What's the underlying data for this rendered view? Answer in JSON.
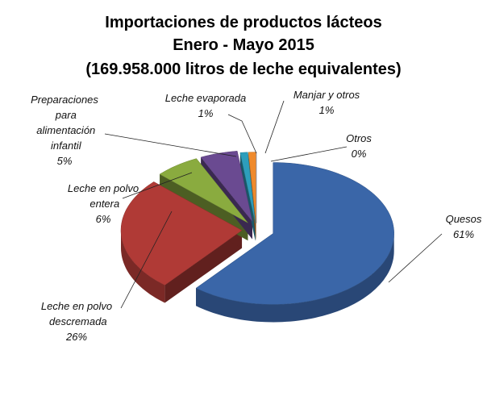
{
  "chart_data": {
    "type": "pie",
    "title": [
      "Importaciones de productos lácteos",
      "Enero - Mayo  2015",
      "(169.958.000  litros de leche equivalentes)"
    ],
    "categories": [
      "Quesos",
      "Leche en polvo descremada",
      "Leche en polvo entera",
      "Preparaciones para alimentación infantil",
      "Leche evaporada",
      "Manjar y otros",
      "Otros"
    ],
    "values": [
      61,
      26,
      6,
      5,
      1,
      1,
      0
    ],
    "value_labels": [
      "61%",
      "26%",
      "6%",
      "5%",
      "1%",
      "1%",
      "0%"
    ],
    "colors": [
      "#3a66a8",
      "#b03a36",
      "#8aab3f",
      "#6a4a91",
      "#2d9ebc",
      "#ef8a2c",
      "#9fb3d6"
    ]
  }
}
